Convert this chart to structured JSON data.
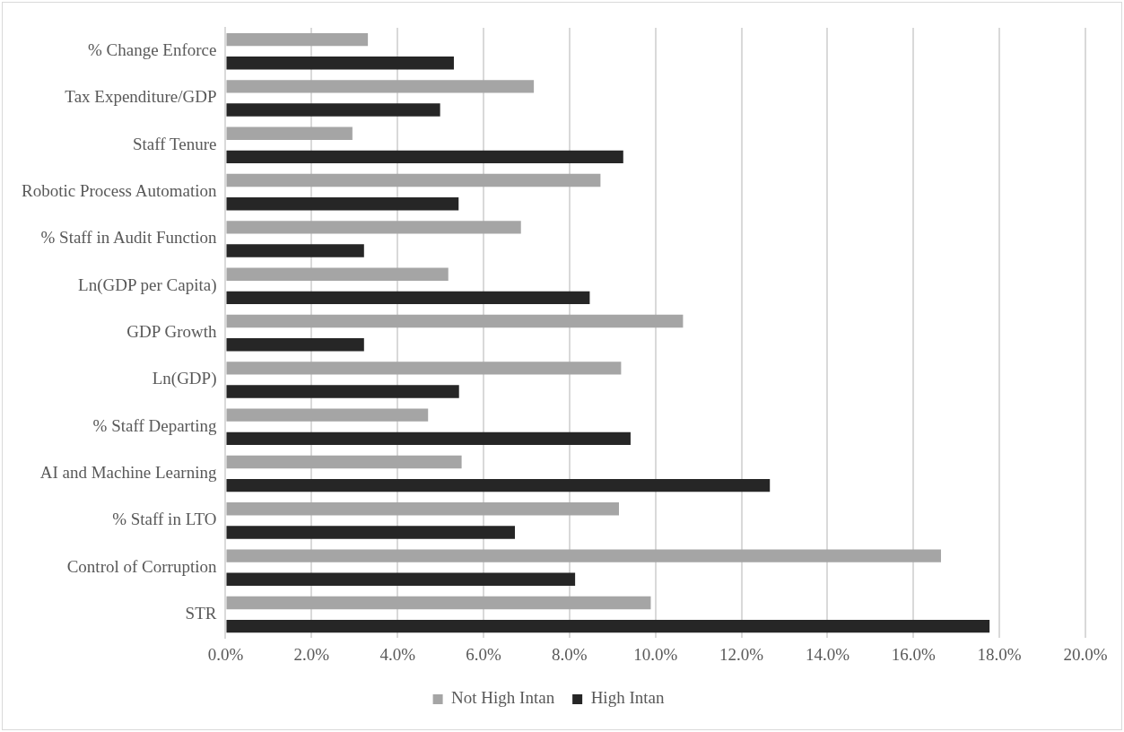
{
  "chart_data": {
    "type": "bar",
    "orientation": "horizontal",
    "categories": [
      "% Change Enforce",
      "Tax Expenditure/GDP",
      "Staff Tenure",
      "Robotic Process Automation",
      "% Staff in Audit Function",
      "Ln(GDP per Capita)",
      "GDP Growth",
      "Ln(GDP)",
      "% Staff Departing",
      "AI and Machine Learning",
      "% Staff in LTO",
      "Control of Corruption",
      "STR"
    ],
    "series": [
      {
        "name": "Not High Intan",
        "color": "#a5a5a5",
        "values": [
          3.31,
          7.17,
          2.95,
          8.72,
          6.87,
          5.18,
          10.64,
          9.2,
          4.71,
          5.49,
          9.15,
          16.64,
          9.89
        ]
      },
      {
        "name": "High Intan",
        "color": "#262626",
        "values": [
          5.31,
          4.99,
          9.25,
          5.42,
          3.22,
          8.47,
          3.22,
          5.43,
          9.42,
          12.66,
          6.73,
          8.13,
          17.77
        ]
      }
    ],
    "xlim": [
      0,
      20
    ],
    "xticks": [
      {
        "value": 0,
        "label": "0.0%"
      },
      {
        "value": 2,
        "label": "2.0%"
      },
      {
        "value": 4,
        "label": "4.0%"
      },
      {
        "value": 6,
        "label": "6.0%"
      },
      {
        "value": 8,
        "label": "8.0%"
      },
      {
        "value": 10,
        "label": "10.0%"
      },
      {
        "value": 12,
        "label": "12.0%"
      },
      {
        "value": 14,
        "label": "14.0%"
      },
      {
        "value": 16,
        "label": "16.0%"
      },
      {
        "value": 18,
        "label": "18.0%"
      },
      {
        "value": 20,
        "label": "20.0%"
      }
    ],
    "grid": "x",
    "legend": "bottom"
  }
}
